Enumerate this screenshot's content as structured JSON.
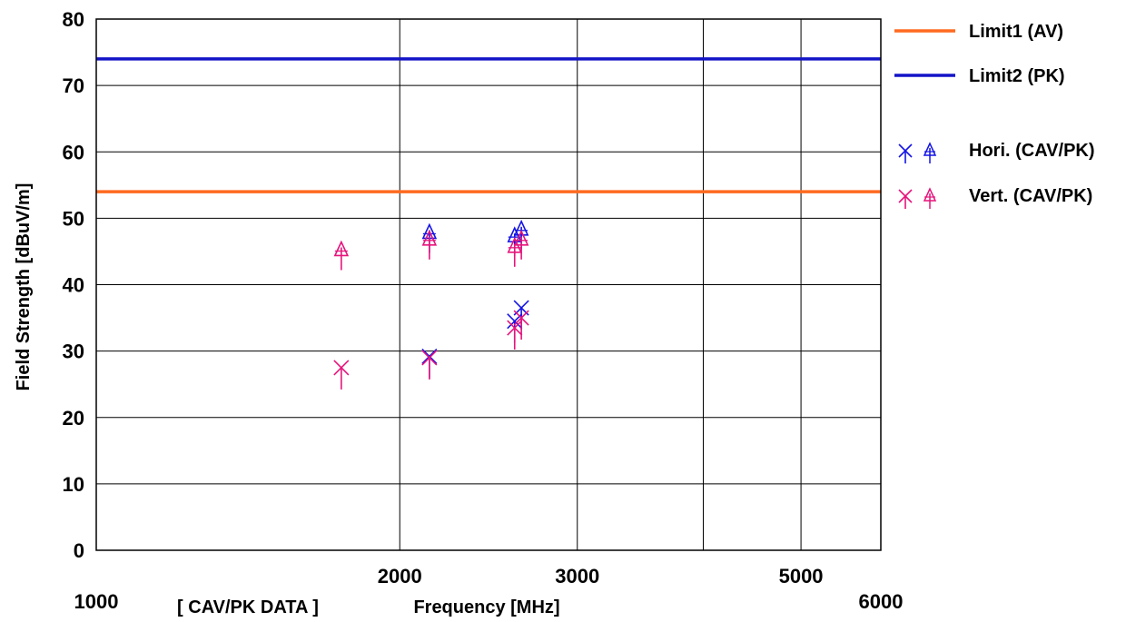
{
  "chart_data": {
    "type": "scatter",
    "title": "",
    "xlabel": "Frequency [MHz]",
    "ylabel": "Field Strength [dBuV/m]",
    "footnote": "[ CAV/PK DATA ]",
    "x_scale": "log",
    "xlim": [
      1000,
      6000
    ],
    "ylim": [
      0,
      80
    ],
    "grid": true,
    "legend_position": "right",
    "y_ticks": [
      "0",
      "10",
      "20",
      "30",
      "40",
      "50",
      "60",
      "70",
      "80"
    ],
    "x_ticks_upper": [
      {
        "value": 2000,
        "label": "2000"
      },
      {
        "value": 3000,
        "label": "3000"
      },
      {
        "value": 5000,
        "label": "5000"
      }
    ],
    "x_ticks_lower": [
      {
        "value": 1000,
        "label": "1000"
      },
      {
        "value": 6000,
        "label": "6000"
      }
    ],
    "x_gridlines": [
      2000,
      3000,
      4000,
      5000
    ],
    "limits": [
      {
        "name": "Limit1 (AV)",
        "value": 54,
        "color": "#ff6a1f"
      },
      {
        "name": "Limit2 (PK)",
        "value": 74,
        "color": "#1414c8"
      }
    ],
    "series": [
      {
        "name": "Hori. (CAV/PK)",
        "color": "#1414e6",
        "cav": [
          {
            "x": 2140,
            "y": 29.2
          },
          {
            "x": 2600,
            "y": 34.5
          },
          {
            "x": 2640,
            "y": 36.5
          }
        ],
        "pk": [
          {
            "x": 2140,
            "y": 47.8
          },
          {
            "x": 2600,
            "y": 47.3
          },
          {
            "x": 2640,
            "y": 48.3
          }
        ]
      },
      {
        "name": "Vert. (CAV/PK)",
        "color": "#e6147c",
        "cav": [
          {
            "x": 1750,
            "y": 27.5
          },
          {
            "x": 2140,
            "y": 29.0
          },
          {
            "x": 2600,
            "y": 33.5
          },
          {
            "x": 2640,
            "y": 35.0
          }
        ],
        "pk": [
          {
            "x": 1750,
            "y": 45.2
          },
          {
            "x": 2140,
            "y": 46.8
          },
          {
            "x": 2600,
            "y": 45.7
          },
          {
            "x": 2640,
            "y": 46.8
          }
        ]
      }
    ]
  }
}
